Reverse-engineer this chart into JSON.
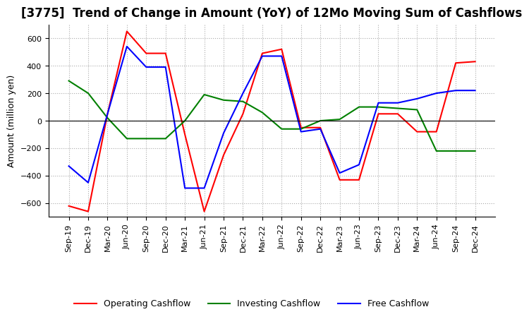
{
  "title": "[3775]  Trend of Change in Amount (YoY) of 12Mo Moving Sum of Cashflows",
  "ylabel": "Amount (million yen)",
  "ylim": [
    -700,
    700
  ],
  "yticks": [
    -600,
    -400,
    -200,
    0,
    200,
    400,
    600
  ],
  "x_labels": [
    "Sep-19",
    "Dec-19",
    "Mar-20",
    "Jun-20",
    "Sep-20",
    "Dec-20",
    "Mar-21",
    "Jun-21",
    "Sep-21",
    "Dec-21",
    "Mar-22",
    "Jun-22",
    "Sep-22",
    "Dec-22",
    "Mar-23",
    "Jun-23",
    "Sep-23",
    "Dec-23",
    "Mar-24",
    "Jun-24",
    "Sep-24",
    "Dec-24"
  ],
  "operating": [
    -620,
    -660,
    50,
    650,
    490,
    490,
    -100,
    -660,
    -250,
    50,
    490,
    520,
    -50,
    -50,
    -430,
    -430,
    50,
    50,
    -80,
    -80,
    420,
    430
  ],
  "investing": [
    290,
    200,
    20,
    -130,
    -130,
    -130,
    0,
    190,
    150,
    140,
    60,
    -60,
    -60,
    0,
    10,
    100,
    100,
    90,
    80,
    -220,
    -220,
    -220
  ],
  "free": [
    -330,
    -450,
    50,
    540,
    390,
    390,
    -490,
    -490,
    -90,
    200,
    470,
    470,
    -80,
    -60,
    -380,
    -320,
    130,
    130,
    160,
    200,
    220,
    220
  ],
  "operating_color": "#ff0000",
  "investing_color": "#008000",
  "free_color": "#0000ff",
  "background_color": "#ffffff",
  "grid_color": "#aaaaaa",
  "title_fontsize": 12,
  "label_fontsize": 9,
  "tick_fontsize": 8,
  "legend_fontsize": 9
}
